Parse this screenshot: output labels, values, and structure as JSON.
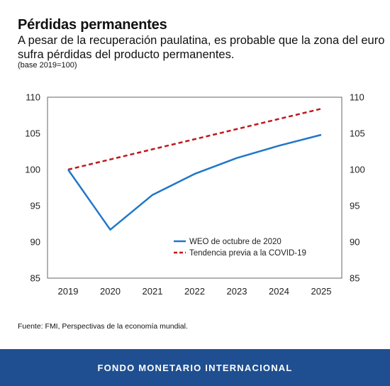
{
  "header": {
    "title": "Pérdidas permanentes",
    "subtitle": "A pesar de la recuperación paulatina, es probable que la zona del euro sufra pérdidas del producto permanentes.",
    "note": "(base 2019=100)"
  },
  "source": "Fuente: FMI, Perspectivas de la economía mundial.",
  "footer": {
    "label": "FONDO MONETARIO INTERNACIONAL"
  },
  "colors": {
    "weo": "#1f77c8",
    "trend": "#c0171b",
    "footer_bg": "#1f4f90"
  },
  "chart_data": {
    "type": "line",
    "x": [
      2019,
      2020,
      2021,
      2022,
      2023,
      2024,
      2025
    ],
    "xticks": [
      "2019",
      "2020",
      "2021",
      "2022",
      "2023",
      "2024",
      "2025"
    ],
    "yticks": [
      "85",
      "90",
      "95",
      "100",
      "105",
      "110"
    ],
    "ylim": [
      85,
      110
    ],
    "grid": false,
    "legend_position": "lower-right",
    "series": [
      {
        "name": "WEO de octubre de 2020",
        "style": "solid",
        "color": "#1f77c8",
        "values": [
          100,
          91.7,
          96.5,
          99.4,
          101.6,
          103.3,
          104.8
        ]
      },
      {
        "name": "Tendencia previa a la COVID-19",
        "style": "dashed",
        "color": "#c0171b",
        "values": [
          100,
          101.4,
          102.8,
          104.2,
          105.6,
          107.0,
          108.4
        ]
      }
    ]
  }
}
